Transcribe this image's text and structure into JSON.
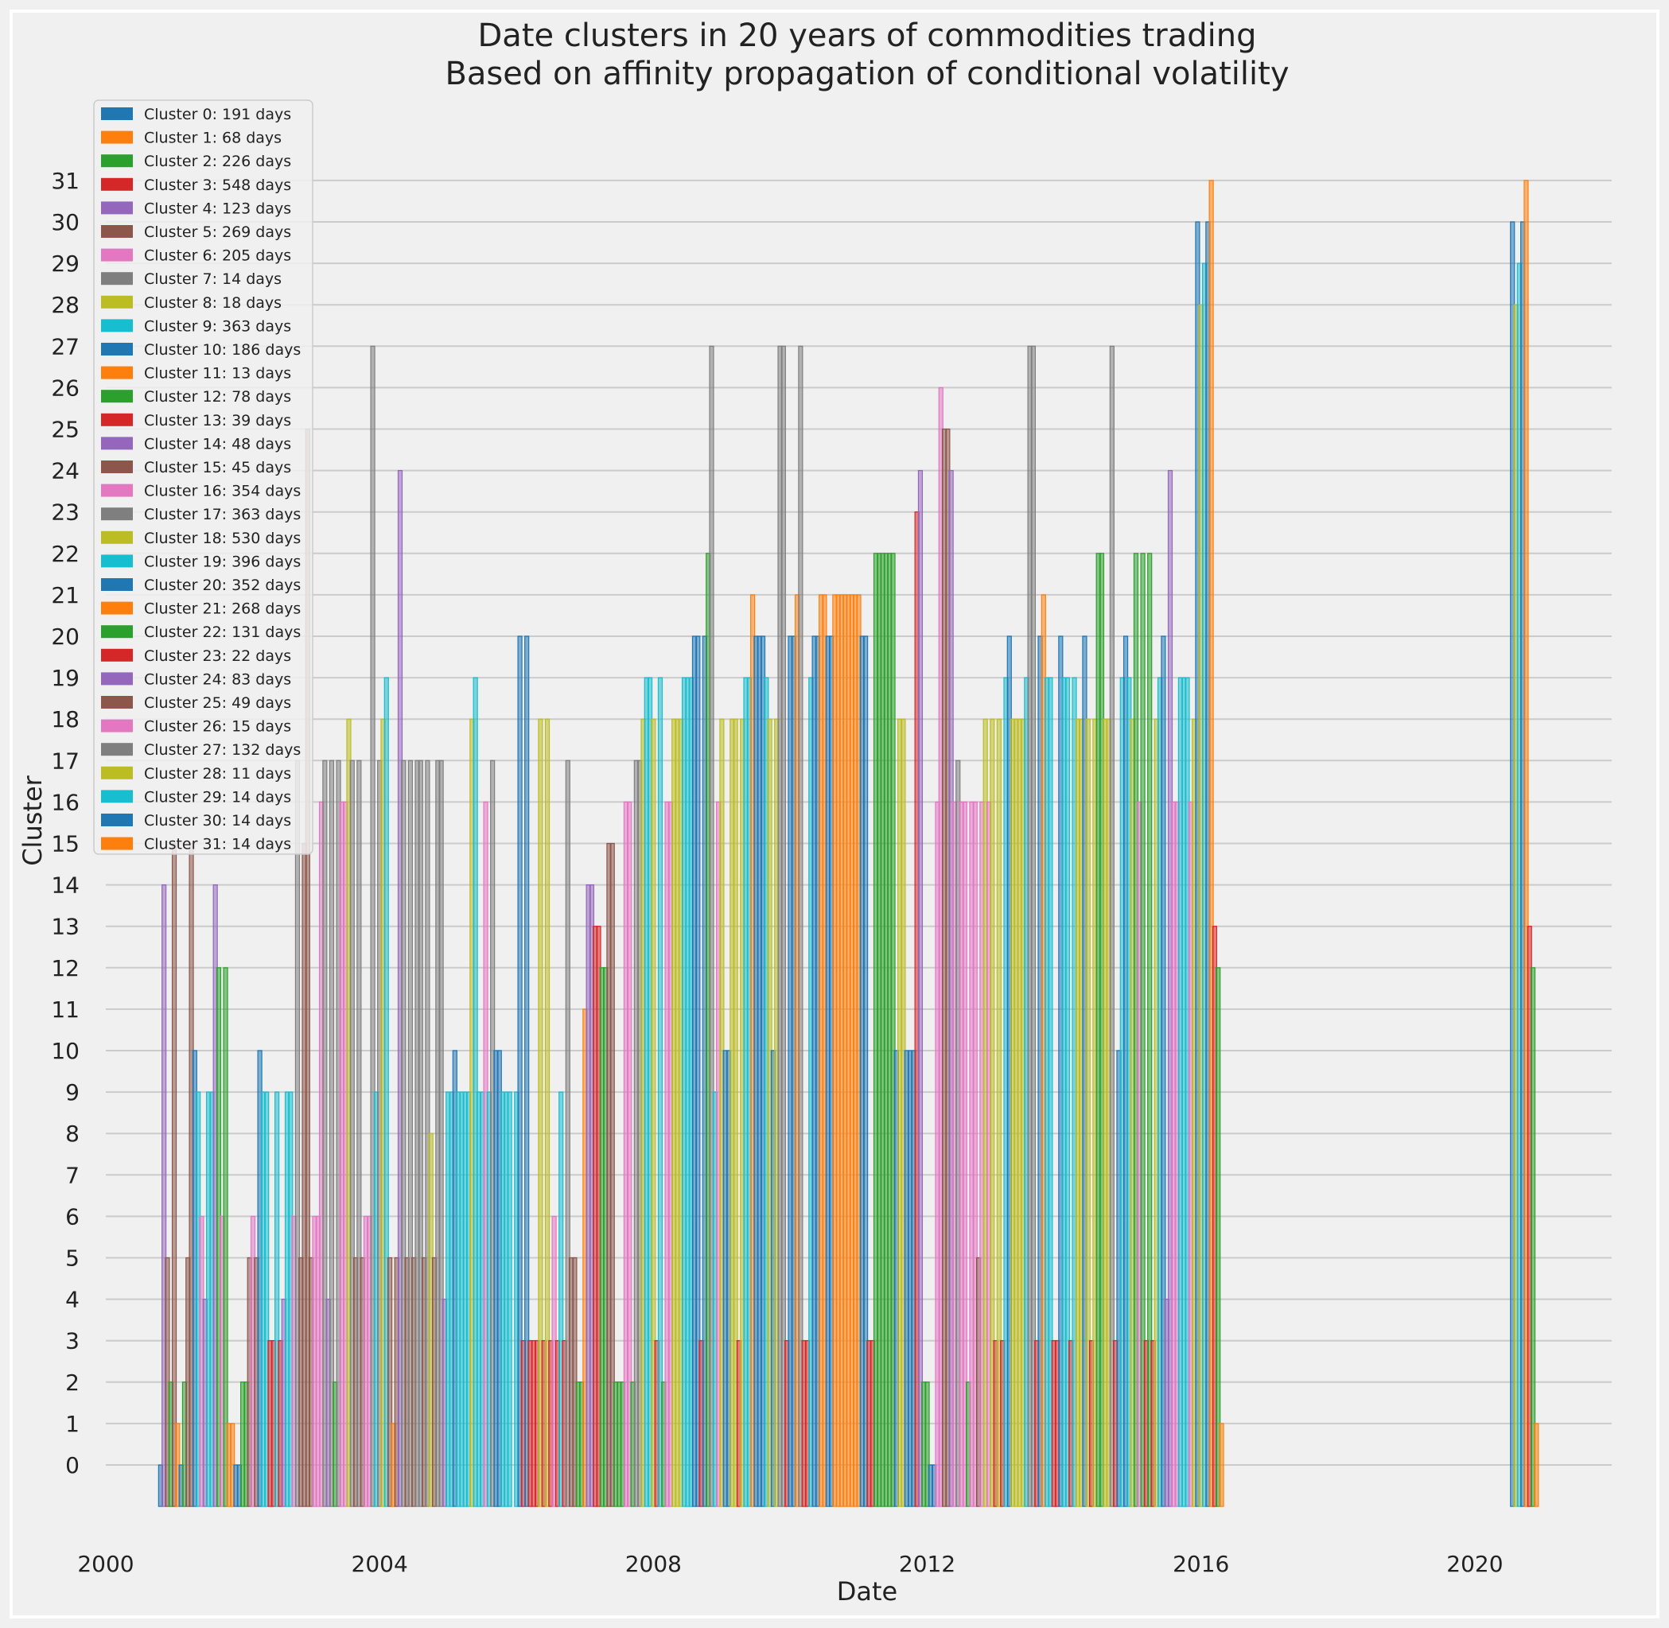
{
  "chart_data": {
    "type": "bar",
    "title": "Date clusters in 20 years of commodities trading",
    "subtitle": "Based on affinity propagation of conditional volatility",
    "xlabel": "Date",
    "ylabel": "Cluster",
    "xlim": [
      2000.0,
      2022.0
    ],
    "ylim": [
      -1,
      32
    ],
    "x_ticks": [
      "2000",
      "2004",
      "2008",
      "2012",
      "2016",
      "2020"
    ],
    "x_tick_values": [
      2000,
      2004,
      2008,
      2012,
      2016,
      2020
    ],
    "y_ticks": [
      "0",
      "1",
      "2",
      "3",
      "4",
      "5",
      "6",
      "7",
      "8",
      "9",
      "10",
      "11",
      "12",
      "13",
      "14",
      "15",
      "16",
      "17",
      "18",
      "19",
      "20",
      "21",
      "22",
      "23",
      "24",
      "25",
      "26",
      "27",
      "28",
      "29",
      "30",
      "31"
    ],
    "grid": true,
    "legend_position": "top-left",
    "colors": [
      "#1f77b4",
      "#ff7f0e",
      "#2ca02c",
      "#d62728",
      "#9467bd",
      "#8c564b",
      "#e377c2",
      "#7f7f7f",
      "#bcbd22",
      "#17becf"
    ],
    "legend": [
      "Cluster 0: 191 days",
      "Cluster 1: 68 days",
      "Cluster 2: 226 days",
      "Cluster 3: 548 days",
      "Cluster 4: 123 days",
      "Cluster 5: 269 days",
      "Cluster 6: 205 days",
      "Cluster 7: 14 days",
      "Cluster 8: 18 days",
      "Cluster 9: 363 days",
      "Cluster 10: 186 days",
      "Cluster 11: 13 days",
      "Cluster 12: 78 days",
      "Cluster 13: 39 days",
      "Cluster 14: 48 days",
      "Cluster 15: 45 days",
      "Cluster 16: 354 days",
      "Cluster 17: 363 days",
      "Cluster 18: 530 days",
      "Cluster 19: 396 days",
      "Cluster 20: 352 days",
      "Cluster 21: 268 days",
      "Cluster 22: 131 days",
      "Cluster 23: 22 days",
      "Cluster 24: 83 days",
      "Cluster 25: 49 days",
      "Cluster 26: 15 days",
      "Cluster 27: 132 days",
      "Cluster 28: 11 days",
      "Cluster 29: 14 days",
      "Cluster 30: 14 days",
      "Cluster 31: 14 days"
    ],
    "bars": [
      [
        2000.8,
        0
      ],
      [
        2000.85,
        14
      ],
      [
        2000.9,
        5
      ],
      [
        2000.95,
        2
      ],
      [
        2001.0,
        15
      ],
      [
        2001.05,
        1
      ],
      [
        2001.1,
        0
      ],
      [
        2001.15,
        2
      ],
      [
        2001.2,
        5
      ],
      [
        2001.25,
        15
      ],
      [
        2001.3,
        10
      ],
      [
        2001.35,
        9
      ],
      [
        2001.4,
        6
      ],
      [
        2001.45,
        4
      ],
      [
        2001.5,
        9
      ],
      [
        2001.55,
        9
      ],
      [
        2001.6,
        14
      ],
      [
        2001.65,
        12
      ],
      [
        2001.7,
        6
      ],
      [
        2001.75,
        12
      ],
      [
        2001.8,
        1
      ],
      [
        2001.85,
        1
      ],
      [
        2001.9,
        0
      ],
      [
        2001.95,
        0
      ],
      [
        2002.0,
        2
      ],
      [
        2002.05,
        2
      ],
      [
        2002.1,
        5
      ],
      [
        2002.15,
        6
      ],
      [
        2002.2,
        5
      ],
      [
        2002.25,
        10
      ],
      [
        2002.3,
        9
      ],
      [
        2002.35,
        9
      ],
      [
        2002.4,
        3
      ],
      [
        2002.45,
        3
      ],
      [
        2002.5,
        9
      ],
      [
        2002.55,
        3
      ],
      [
        2002.6,
        4
      ],
      [
        2002.65,
        9
      ],
      [
        2002.7,
        9
      ],
      [
        2002.75,
        6
      ],
      [
        2002.8,
        17
      ],
      [
        2002.85,
        5
      ],
      [
        2002.9,
        15
      ],
      [
        2002.95,
        25
      ],
      [
        2003.0,
        5
      ],
      [
        2003.05,
        6
      ],
      [
        2003.1,
        6
      ],
      [
        2003.15,
        16
      ],
      [
        2003.2,
        17
      ],
      [
        2003.25,
        4
      ],
      [
        2003.3,
        17
      ],
      [
        2003.35,
        2
      ],
      [
        2003.4,
        17
      ],
      [
        2003.45,
        16
      ],
      [
        2003.5,
        16
      ],
      [
        2003.55,
        18
      ],
      [
        2003.6,
        17
      ],
      [
        2003.65,
        5
      ],
      [
        2003.7,
        17
      ],
      [
        2003.75,
        5
      ],
      [
        2003.8,
        6
      ],
      [
        2003.85,
        6
      ],
      [
        2003.9,
        27
      ],
      [
        2003.95,
        9
      ],
      [
        2004.0,
        17
      ],
      [
        2004.05,
        18
      ],
      [
        2004.1,
        19
      ],
      [
        2004.15,
        5
      ],
      [
        2004.2,
        1
      ],
      [
        2004.25,
        5
      ],
      [
        2004.3,
        24
      ],
      [
        2004.35,
        17
      ],
      [
        2004.4,
        5
      ],
      [
        2004.45,
        17
      ],
      [
        2004.5,
        5
      ],
      [
        2004.55,
        17
      ],
      [
        2004.6,
        17
      ],
      [
        2004.65,
        5
      ],
      [
        2004.7,
        17
      ],
      [
        2004.75,
        8
      ],
      [
        2004.8,
        5
      ],
      [
        2004.85,
        17
      ],
      [
        2004.9,
        17
      ],
      [
        2004.95,
        4
      ],
      [
        2005.0,
        9
      ],
      [
        2005.05,
        9
      ],
      [
        2005.1,
        10
      ],
      [
        2005.15,
        9
      ],
      [
        2005.2,
        9
      ],
      [
        2005.25,
        9
      ],
      [
        2005.3,
        9
      ],
      [
        2005.35,
        18
      ],
      [
        2005.4,
        19
      ],
      [
        2005.45,
        9
      ],
      [
        2005.5,
        9
      ],
      [
        2005.55,
        16
      ],
      [
        2005.6,
        9
      ],
      [
        2005.65,
        17
      ],
      [
        2005.7,
        10
      ],
      [
        2005.75,
        10
      ],
      [
        2005.8,
        9
      ],
      [
        2005.85,
        9
      ],
      [
        2005.9,
        9
      ],
      [
        2006.0,
        9
      ],
      [
        2006.05,
        20
      ],
      [
        2006.1,
        3
      ],
      [
        2006.15,
        20
      ],
      [
        2006.2,
        3
      ],
      [
        2006.25,
        3
      ],
      [
        2006.3,
        3
      ],
      [
        2006.35,
        18
      ],
      [
        2006.4,
        3
      ],
      [
        2006.45,
        18
      ],
      [
        2006.5,
        3
      ],
      [
        2006.55,
        6
      ],
      [
        2006.6,
        3
      ],
      [
        2006.65,
        9
      ],
      [
        2006.7,
        3
      ],
      [
        2006.75,
        17
      ],
      [
        2006.8,
        5
      ],
      [
        2006.85,
        5
      ],
      [
        2006.9,
        2
      ],
      [
        2006.95,
        2
      ],
      [
        2007.0,
        11
      ],
      [
        2007.05,
        14
      ],
      [
        2007.1,
        14
      ],
      [
        2007.15,
        13
      ],
      [
        2007.2,
        13
      ],
      [
        2007.25,
        12
      ],
      [
        2007.3,
        12
      ],
      [
        2007.35,
        15
      ],
      [
        2007.4,
        15
      ],
      [
        2007.45,
        2
      ],
      [
        2007.5,
        2
      ],
      [
        2007.55,
        2
      ],
      [
        2007.6,
        16
      ],
      [
        2007.65,
        16
      ],
      [
        2007.7,
        2
      ],
      [
        2007.75,
        17
      ],
      [
        2007.8,
        17
      ],
      [
        2007.85,
        18
      ],
      [
        2007.9,
        19
      ],
      [
        2007.95,
        19
      ],
      [
        2008.0,
        18
      ],
      [
        2008.05,
        3
      ],
      [
        2008.1,
        19
      ],
      [
        2008.15,
        2
      ],
      [
        2008.2,
        16
      ],
      [
        2008.25,
        16
      ],
      [
        2008.3,
        18
      ],
      [
        2008.35,
        18
      ],
      [
        2008.4,
        18
      ],
      [
        2008.45,
        19
      ],
      [
        2008.5,
        19
      ],
      [
        2008.55,
        19
      ],
      [
        2008.6,
        20
      ],
      [
        2008.65,
        20
      ],
      [
        2008.7,
        3
      ],
      [
        2008.75,
        20
      ],
      [
        2008.8,
        22
      ],
      [
        2008.85,
        27
      ],
      [
        2008.9,
        9
      ],
      [
        2008.95,
        16
      ],
      [
        2009.0,
        18
      ],
      [
        2009.05,
        10
      ],
      [
        2009.1,
        10
      ],
      [
        2009.15,
        18
      ],
      [
        2009.2,
        18
      ],
      [
        2009.25,
        3
      ],
      [
        2009.3,
        18
      ],
      [
        2009.35,
        19
      ],
      [
        2009.4,
        19
      ],
      [
        2009.45,
        21
      ],
      [
        2009.5,
        20
      ],
      [
        2009.55,
        20
      ],
      [
        2009.6,
        20
      ],
      [
        2009.65,
        19
      ],
      [
        2009.7,
        18
      ],
      [
        2009.75,
        10
      ],
      [
        2009.8,
        18
      ],
      [
        2009.85,
        27
      ],
      [
        2009.9,
        27
      ],
      [
        2009.95,
        3
      ],
      [
        2010.0,
        20
      ],
      [
        2010.05,
        20
      ],
      [
        2010.1,
        21
      ],
      [
        2010.15,
        27
      ],
      [
        2010.2,
        3
      ],
      [
        2010.25,
        3
      ],
      [
        2010.3,
        19
      ],
      [
        2010.35,
        20
      ],
      [
        2010.4,
        20
      ],
      [
        2010.45,
        21
      ],
      [
        2010.5,
        21
      ],
      [
        2010.55,
        20
      ],
      [
        2010.6,
        20
      ],
      [
        2010.65,
        21
      ],
      [
        2010.7,
        21
      ],
      [
        2010.75,
        21
      ],
      [
        2010.8,
        21
      ],
      [
        2010.85,
        21
      ],
      [
        2010.9,
        21
      ],
      [
        2010.95,
        21
      ],
      [
        2011.0,
        21
      ],
      [
        2011.05,
        20
      ],
      [
        2011.1,
        20
      ],
      [
        2011.15,
        3
      ],
      [
        2011.2,
        3
      ],
      [
        2011.25,
        22
      ],
      [
        2011.3,
        22
      ],
      [
        2011.35,
        22
      ],
      [
        2011.4,
        22
      ],
      [
        2011.45,
        22
      ],
      [
        2011.5,
        22
      ],
      [
        2011.55,
        10
      ],
      [
        2011.6,
        18
      ],
      [
        2011.65,
        18
      ],
      [
        2011.7,
        10
      ],
      [
        2011.75,
        10
      ],
      [
        2011.8,
        10
      ],
      [
        2011.85,
        23
      ],
      [
        2011.9,
        24
      ],
      [
        2011.95,
        2
      ],
      [
        2012.0,
        2
      ],
      [
        2012.05,
        0
      ],
      [
        2012.1,
        0
      ],
      [
        2012.15,
        16
      ],
      [
        2012.2,
        26
      ],
      [
        2012.25,
        25
      ],
      [
        2012.3,
        25
      ],
      [
        2012.35,
        24
      ],
      [
        2012.4,
        16
      ],
      [
        2012.45,
        17
      ],
      [
        2012.5,
        16
      ],
      [
        2012.55,
        16
      ],
      [
        2012.6,
        2
      ],
      [
        2012.65,
        16
      ],
      [
        2012.7,
        16
      ],
      [
        2012.75,
        5
      ],
      [
        2012.8,
        16
      ],
      [
        2012.85,
        18
      ],
      [
        2012.9,
        16
      ],
      [
        2012.95,
        18
      ],
      [
        2013.0,
        3
      ],
      [
        2013.05,
        18
      ],
      [
        2013.1,
        3
      ],
      [
        2013.15,
        19
      ],
      [
        2013.2,
        20
      ],
      [
        2013.25,
        18
      ],
      [
        2013.3,
        18
      ],
      [
        2013.35,
        18
      ],
      [
        2013.4,
        18
      ],
      [
        2013.45,
        19
      ],
      [
        2013.5,
        27
      ],
      [
        2013.55,
        27
      ],
      [
        2013.6,
        3
      ],
      [
        2013.65,
        20
      ],
      [
        2013.7,
        21
      ],
      [
        2013.75,
        19
      ],
      [
        2013.8,
        19
      ],
      [
        2013.85,
        3
      ],
      [
        2013.9,
        3
      ],
      [
        2013.95,
        20
      ],
      [
        2014.0,
        19
      ],
      [
        2014.05,
        19
      ],
      [
        2014.1,
        3
      ],
      [
        2014.15,
        19
      ],
      [
        2014.2,
        18
      ],
      [
        2014.25,
        18
      ],
      [
        2014.3,
        20
      ],
      [
        2014.35,
        18
      ],
      [
        2014.4,
        3
      ],
      [
        2014.45,
        18
      ],
      [
        2014.5,
        22
      ],
      [
        2014.55,
        22
      ],
      [
        2014.6,
        18
      ],
      [
        2014.65,
        18
      ],
      [
        2014.7,
        27
      ],
      [
        2014.75,
        3
      ],
      [
        2014.8,
        10
      ],
      [
        2014.85,
        19
      ],
      [
        2014.9,
        20
      ],
      [
        2014.95,
        19
      ],
      [
        2015.0,
        18
      ],
      [
        2015.05,
        22
      ],
      [
        2015.1,
        16
      ],
      [
        2015.15,
        22
      ],
      [
        2015.2,
        3
      ],
      [
        2015.25,
        22
      ],
      [
        2015.3,
        3
      ],
      [
        2015.35,
        18
      ],
      [
        2015.4,
        19
      ],
      [
        2015.45,
        20
      ],
      [
        2015.5,
        4
      ],
      [
        2015.55,
        24
      ],
      [
        2015.6,
        16
      ],
      [
        2015.65,
        16
      ],
      [
        2015.7,
        19
      ],
      [
        2015.75,
        19
      ],
      [
        2015.8,
        19
      ],
      [
        2015.85,
        16
      ],
      [
        2015.9,
        18
      ],
      [
        2015.95,
        30
      ],
      [
        2016.0,
        28
      ],
      [
        2016.05,
        29
      ],
      [
        2016.1,
        30
      ],
      [
        2016.15,
        31
      ],
      [
        2016.2,
        13
      ],
      [
        2016.25,
        12
      ],
      [
        2016.3,
        1
      ],
      [
        2020.55,
        30
      ],
      [
        2020.6,
        28
      ],
      [
        2020.65,
        29
      ],
      [
        2020.7,
        30
      ],
      [
        2020.75,
        31
      ],
      [
        2020.8,
        13
      ],
      [
        2020.85,
        12
      ],
      [
        2020.9,
        1
      ]
    ]
  }
}
